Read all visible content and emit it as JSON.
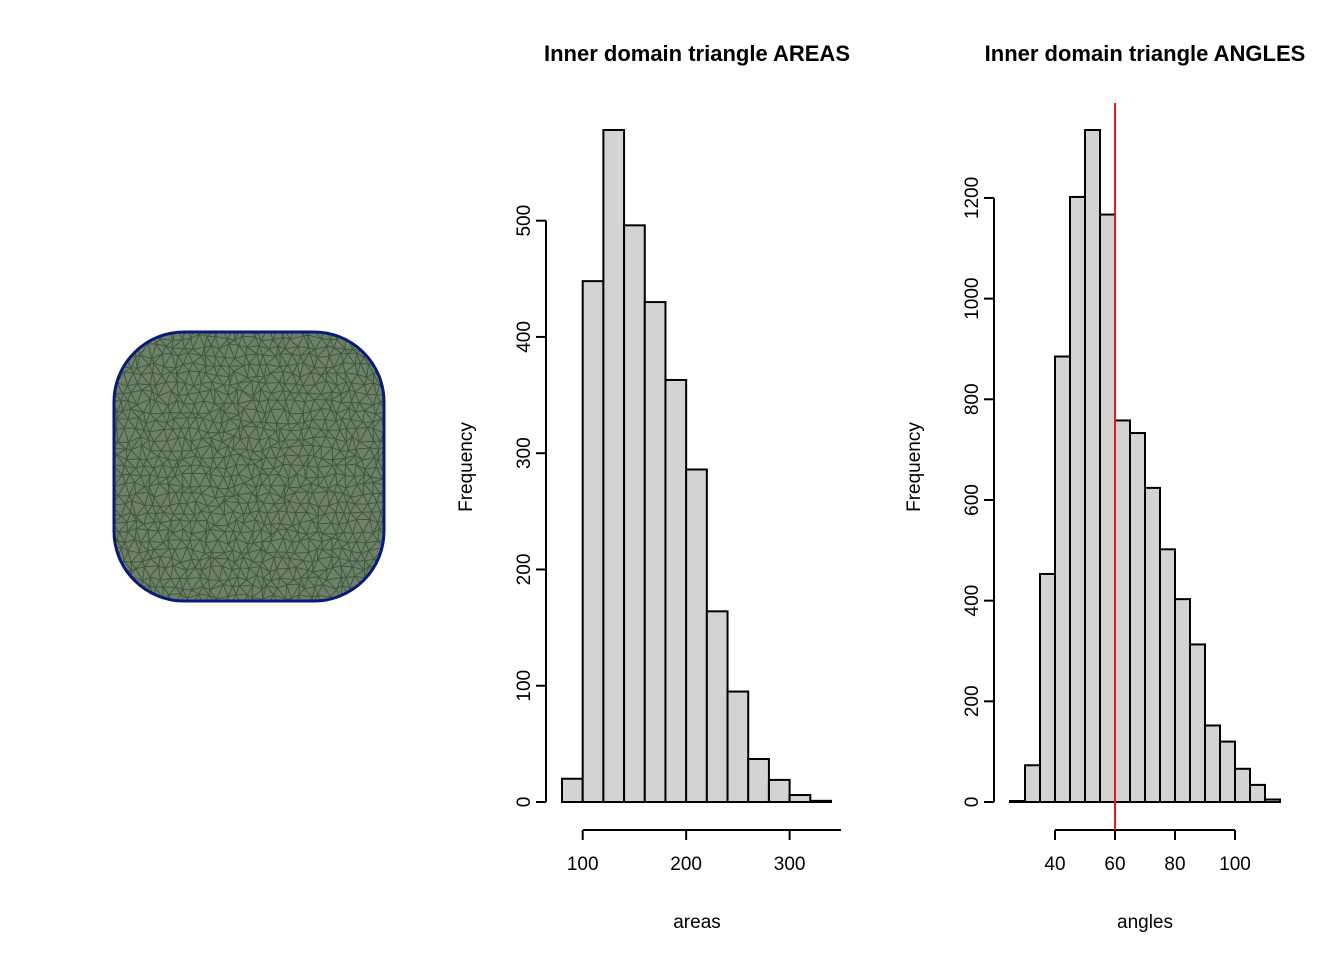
{
  "colors": {
    "bar_fill": "#d3d3d3",
    "bar_stroke": "#000000",
    "reference_line": "#e31a1c",
    "mesh_boundary": "#0a1a7a",
    "mesh_edges": "#3d5a3d"
  },
  "chart_data": [
    {
      "type": "mesh",
      "title": "",
      "shape": "rounded-square",
      "boundary_color": "#0a1a7a",
      "edge_color": "#3d5a3d"
    },
    {
      "type": "bar",
      "title": "Inner domain triangle AREAS",
      "xlabel": "areas",
      "ylabel": "Frequency",
      "bin_edges": [
        80,
        100,
        120,
        140,
        160,
        180,
        200,
        220,
        240,
        260,
        280,
        300,
        320,
        340
      ],
      "values": [
        20,
        448,
        578,
        496,
        430,
        363,
        286,
        164,
        95,
        37,
        19,
        6,
        1
      ],
      "xlim": [
        80,
        340
      ],
      "ylim": [
        0,
        578
      ],
      "xticks": [
        100,
        200,
        300
      ],
      "xtick_labels": [
        "100",
        "200",
        "300"
      ],
      "yticks": [
        0,
        100,
        200,
        300,
        400,
        500
      ],
      "ytick_labels": [
        "0",
        "100",
        "200",
        "300",
        "400",
        "500"
      ]
    },
    {
      "type": "bar",
      "title": "Inner domain triangle ANGLES",
      "xlabel": "angles",
      "ylabel": "Frequency",
      "bin_edges": [
        25,
        30,
        35,
        40,
        45,
        50,
        55,
        60,
        65,
        70,
        75,
        80,
        85,
        90,
        95,
        100,
        105,
        110,
        115
      ],
      "values": [
        2,
        73,
        453,
        885,
        1202,
        1335,
        1167,
        758,
        733,
        624,
        502,
        403,
        313,
        152,
        120,
        66,
        34,
        5
      ],
      "xlim": [
        25,
        115
      ],
      "ylim": [
        0,
        1335
      ],
      "xticks": [
        40,
        60,
        80,
        100
      ],
      "xtick_labels": [
        "40",
        "60",
        "80",
        "100"
      ],
      "yticks": [
        0,
        200,
        400,
        600,
        800,
        1000,
        1200
      ],
      "ytick_labels": [
        "0",
        "200",
        "400",
        "600",
        "800",
        "1000",
        "1200"
      ],
      "reference_line": {
        "x": 60,
        "color": "#e31a1c"
      }
    }
  ]
}
